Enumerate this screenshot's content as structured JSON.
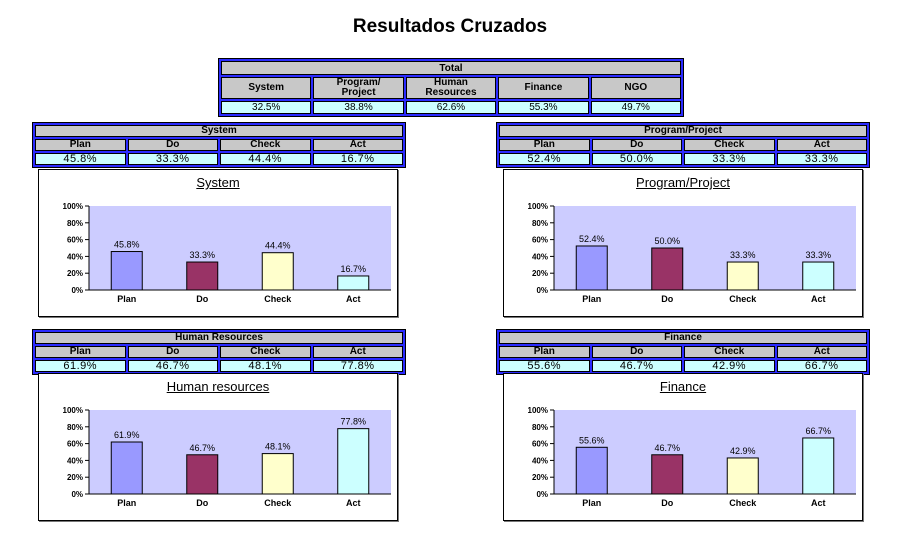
{
  "page": {
    "title": "Resultados Cruzados"
  },
  "total": {
    "title": "Total",
    "headers": [
      "System",
      "Program/\nProject",
      "Human\nResources",
      "Finance",
      "NGO"
    ],
    "values": [
      "32.5%",
      "38.8%",
      "62.6%",
      "55.3%",
      "49.7%"
    ]
  },
  "tables": [
    {
      "title": "System",
      "headers": [
        "Plan",
        "Do",
        "Check",
        "Act"
      ],
      "values": [
        "45.8%",
        "33.3%",
        "44.4%",
        "16.7%"
      ]
    },
    {
      "title": "Program/Project",
      "headers": [
        "Plan",
        "Do",
        "Check",
        "Act"
      ],
      "values": [
        "52.4%",
        "50.0%",
        "33.3%",
        "33.3%"
      ]
    },
    {
      "title": "Human Resources",
      "headers": [
        "Plan",
        "Do",
        "Check",
        "Act"
      ],
      "values": [
        "61.9%",
        "46.7%",
        "48.1%",
        "77.8%"
      ]
    },
    {
      "title": "Finance",
      "headers": [
        "Plan",
        "Do",
        "Check",
        "Act"
      ],
      "values": [
        "55.6%",
        "46.7%",
        "42.9%",
        "66.7%"
      ]
    }
  ],
  "colors": {
    "plot_background": "#ccccff",
    "bars": [
      "#9999ff",
      "#993366",
      "#ffffcc",
      "#ccffff"
    ],
    "table_frame": "#2b2bff",
    "table_header": "#c8c8c8",
    "table_value": "#ccffff"
  },
  "chart_data": [
    {
      "type": "bar",
      "title": "System",
      "categories": [
        "Plan",
        "Do",
        "Check",
        "Act"
      ],
      "values": [
        45.8,
        33.3,
        44.4,
        16.7
      ],
      "value_labels": [
        "45.8%",
        "33.3%",
        "44.4%",
        "16.7%"
      ],
      "ylim": [
        0,
        100
      ],
      "yticks": [
        "0%",
        "20%",
        "40%",
        "60%",
        "80%",
        "100%"
      ],
      "grid": false,
      "legend": "none"
    },
    {
      "type": "bar",
      "title": "Program/Project",
      "categories": [
        "Plan",
        "Do",
        "Check",
        "Act"
      ],
      "values": [
        52.4,
        50.0,
        33.3,
        33.3
      ],
      "value_labels": [
        "52.4%",
        "50.0%",
        "33.3%",
        "33.3%"
      ],
      "ylim": [
        0,
        100
      ],
      "yticks": [
        "0%",
        "20%",
        "40%",
        "60%",
        "80%",
        "100%"
      ],
      "grid": false,
      "legend": "none"
    },
    {
      "type": "bar",
      "title": "Human resources",
      "categories": [
        "Plan",
        "Do",
        "Check",
        "Act"
      ],
      "values": [
        61.9,
        46.7,
        48.1,
        77.8
      ],
      "value_labels": [
        "61.9%",
        "46.7%",
        "48.1%",
        "77.8%"
      ],
      "ylim": [
        0,
        100
      ],
      "yticks": [
        "0%",
        "20%",
        "40%",
        "60%",
        "80%",
        "100%"
      ],
      "grid": false,
      "legend": "none"
    },
    {
      "type": "bar",
      "title": "Finance",
      "categories": [
        "Plan",
        "Do",
        "Check",
        "Act"
      ],
      "values": [
        55.6,
        46.7,
        42.9,
        66.7
      ],
      "value_labels": [
        "55.6%",
        "46.7%",
        "42.9%",
        "66.7%"
      ],
      "ylim": [
        0,
        100
      ],
      "yticks": [
        "0%",
        "20%",
        "40%",
        "60%",
        "80%",
        "100%"
      ],
      "grid": false,
      "legend": "none"
    }
  ]
}
